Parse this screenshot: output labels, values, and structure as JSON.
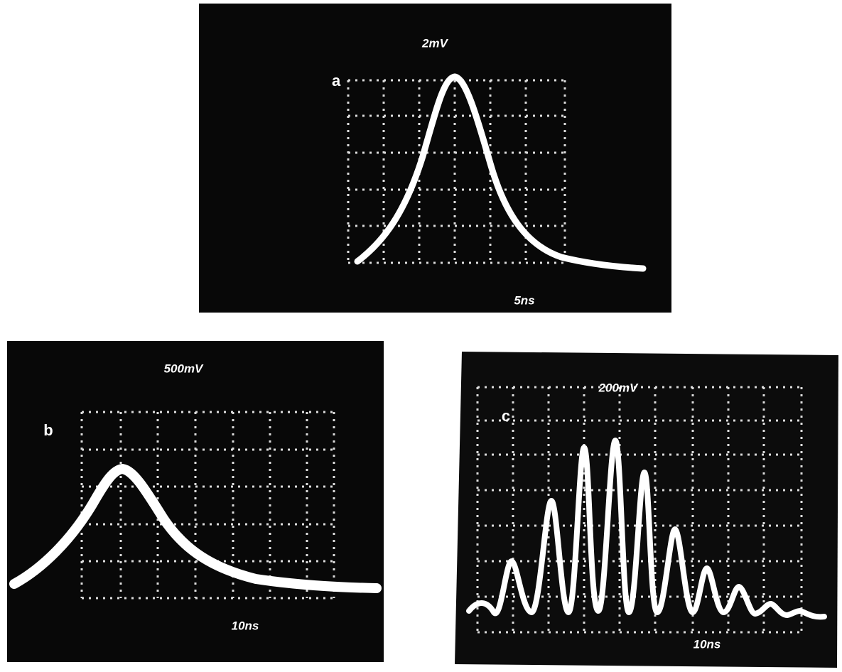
{
  "panels": [
    {
      "label": "a",
      "vertical_scale": "2mV",
      "horizontal_scale": "5ns"
    },
    {
      "label": "b",
      "vertical_scale": "500mV",
      "horizontal_scale": "10ns"
    },
    {
      "label": "c",
      "vertical_scale": "200mV",
      "horizontal_scale": "10ns"
    }
  ]
}
